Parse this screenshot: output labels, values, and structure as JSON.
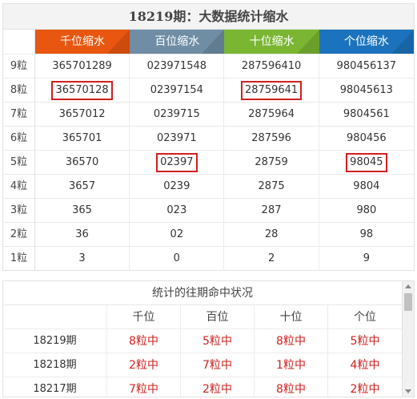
{
  "top_table": {
    "title": "18219期：大数据统计缩水",
    "headers": [
      {
        "label": "千位缩水",
        "color": "#e9560f"
      },
      {
        "label": "百位缩水",
        "color": "#6f8da4"
      },
      {
        "label": "十位缩水",
        "color": "#7ab631"
      },
      {
        "label": "个位缩水",
        "color": "#1c73bd"
      }
    ],
    "rows": [
      {
        "label": "9粒",
        "values": [
          "365701289",
          "023971548",
          "287596410",
          "980456137"
        ]
      },
      {
        "label": "8粒",
        "values": [
          "36570128",
          "02397154",
          "28759641",
          "98045613"
        ]
      },
      {
        "label": "7粒",
        "values": [
          "3657012",
          "0239715",
          "2875964",
          "9804561"
        ]
      },
      {
        "label": "6粒",
        "values": [
          "365701",
          "023971",
          "287596",
          "980456"
        ]
      },
      {
        "label": "5粒",
        "values": [
          "36570",
          "02397",
          "28759",
          "98045"
        ]
      },
      {
        "label": "4粒",
        "values": [
          "3657",
          "0239",
          "2875",
          "9804"
        ]
      },
      {
        "label": "3粒",
        "values": [
          "365",
          "023",
          "287",
          "980"
        ]
      },
      {
        "label": "2粒",
        "values": [
          "36",
          "02",
          "28",
          "98"
        ]
      },
      {
        "label": "1粒",
        "values": [
          "3",
          "0",
          "2",
          "9"
        ]
      }
    ],
    "highlight_color": "#d11f1f"
  },
  "history": {
    "title": "统计的往期命中状况",
    "columns": [
      "千位",
      "百位",
      "十位",
      "个位"
    ],
    "rows": [
      {
        "period": "18219期",
        "hits": [
          "8粒中",
          "5粒中",
          "8粒中",
          "5粒中"
        ]
      },
      {
        "period": "18218期",
        "hits": [
          "2粒中",
          "7粒中",
          "1粒中",
          "4粒中"
        ]
      },
      {
        "period": "18217期",
        "hits": [
          "7粒中",
          "2粒中",
          "8粒中",
          "2粒中"
        ]
      }
    ]
  }
}
